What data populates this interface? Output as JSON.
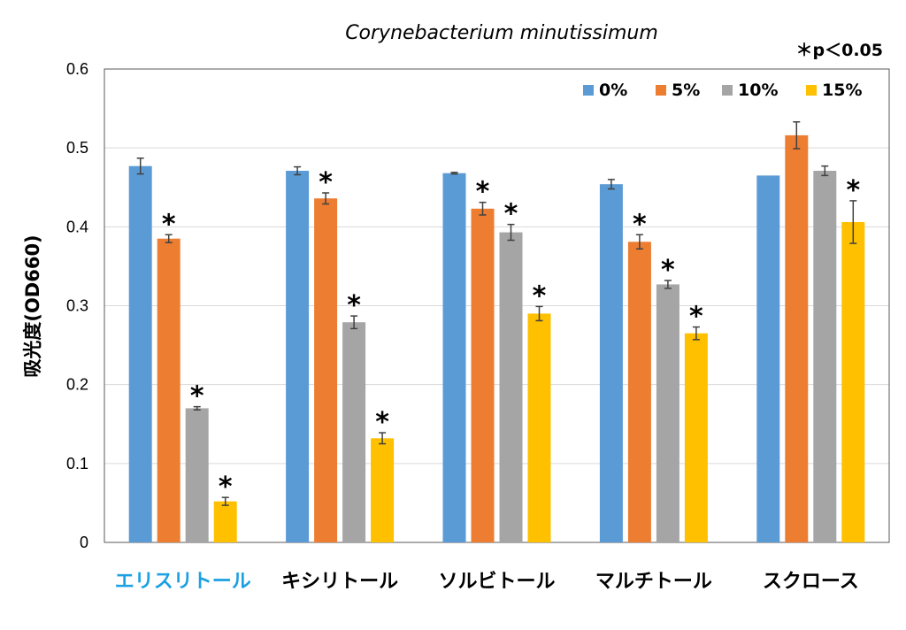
{
  "chart_data": {
    "type": "bar",
    "title": "Corynebacterium minutissimum",
    "significance_note": "＊p＜0.05",
    "ylabel": "吸光度(OD660)",
    "xlabel": "",
    "ylim": [
      0,
      0.6
    ],
    "yticks": [
      "0",
      "0.1",
      "0.2",
      "0.3",
      "0.4",
      "0.5",
      "0.6"
    ],
    "ytick_values": [
      0,
      0.1,
      0.2,
      0.3,
      0.4,
      0.5,
      0.6
    ],
    "grid": true,
    "legend_position": "top-right",
    "categories": [
      "エリスリトール",
      "キシリトール",
      "ソルビトール",
      "マルチトール",
      "スクロース"
    ],
    "category_colors": [
      "#1ba1e2",
      "#000000",
      "#000000",
      "#000000",
      "#000000"
    ],
    "series": [
      {
        "name": "0%",
        "color": "#5b9bd5",
        "values": [
          0.477,
          0.471,
          0.468,
          0.454,
          0.465
        ],
        "errors": [
          0.01,
          0.005,
          0.001,
          0.006,
          0
        ],
        "significant": [
          false,
          false,
          false,
          false,
          false
        ]
      },
      {
        "name": "5%",
        "color": "#ed7d31",
        "values": [
          0.385,
          0.436,
          0.423,
          0.381,
          0.516
        ],
        "errors": [
          0.005,
          0.007,
          0.008,
          0.009,
          0.017
        ],
        "significant": [
          true,
          true,
          true,
          true,
          false
        ]
      },
      {
        "name": "10%",
        "color": "#a5a5a5",
        "values": [
          0.17,
          0.279,
          0.393,
          0.327,
          0.471
        ],
        "errors": [
          0.002,
          0.008,
          0.01,
          0.005,
          0.006
        ],
        "significant": [
          true,
          true,
          true,
          true,
          false
        ]
      },
      {
        "name": "15%",
        "color": "#ffc000",
        "values": [
          0.052,
          0.132,
          0.29,
          0.265,
          0.406
        ],
        "errors": [
          0.005,
          0.007,
          0.009,
          0.008,
          0.027
        ],
        "significant": [
          true,
          true,
          true,
          true,
          true
        ]
      }
    ],
    "star_symbol": "*"
  }
}
